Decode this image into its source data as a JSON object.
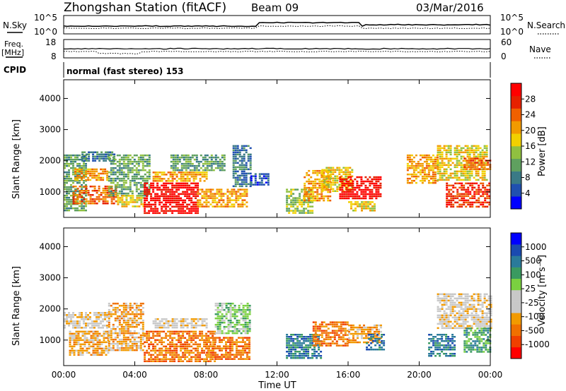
{
  "header": {
    "title": "Zhongshan Station (fitACF)",
    "beam": "Beam 09",
    "date": "03/Mar/2016"
  },
  "top_panel": {
    "left_label": "N.Sky",
    "right_label": "N.Search",
    "y_top": "10^5",
    "y_bottom": "10^0"
  },
  "freq_panel": {
    "left_label_1": "Freq.",
    "left_label_2": "[MHz]",
    "left_top": "18",
    "left_bottom": "8",
    "right_label": "Nave",
    "right_top": "60",
    "right_bottom": "0"
  },
  "cpid": {
    "label": "CPID",
    "value": "normal (fast stereo) 153"
  },
  "chart_data": [
    {
      "type": "heatmap",
      "title": "",
      "xlabel": "",
      "ylabel": "Slant Range [km]",
      "x_ticks": [
        "00:00",
        "04:00",
        "08:00",
        "12:00",
        "16:00",
        "20:00",
        "00:00"
      ],
      "y_ticks": [
        1000,
        2000,
        3000,
        4000
      ],
      "ylim": [
        180,
        4600
      ],
      "xlim_hours": [
        0,
        24
      ],
      "colorbar": {
        "label": "Power [dB]",
        "ticks": [
          "4",
          "8",
          "12",
          "16",
          "20",
          "24",
          "28"
        ],
        "colors": [
          "#0000ff",
          "#2050b0",
          "#3a7a86",
          "#5fa05f",
          "#90c040",
          "#f2d000",
          "#f29a00",
          "#f06000",
          "#e62000",
          "#ff0000"
        ]
      },
      "regions": [
        {
          "x0": 0.0,
          "x1": 1.2,
          "y0": 400,
          "y1": 2200,
          "level": 3
        },
        {
          "x0": 0.6,
          "x1": 2.4,
          "y0": 1400,
          "y1": 1750,
          "level": 6
        },
        {
          "x0": 0.5,
          "x1": 3.0,
          "y0": 600,
          "y1": 1200,
          "level": 7
        },
        {
          "x0": 1.0,
          "x1": 2.8,
          "y0": 2000,
          "y1": 2300,
          "level": 2
        },
        {
          "x0": 2.5,
          "x1": 4.8,
          "y0": 900,
          "y1": 2200,
          "level": 3
        },
        {
          "x0": 3.0,
          "x1": 4.5,
          "y0": 500,
          "y1": 900,
          "level": 5
        },
        {
          "x0": 4.5,
          "x1": 7.5,
          "y0": 300,
          "y1": 1300,
          "level": 9
        },
        {
          "x0": 5.0,
          "x1": 8.0,
          "y0": 1350,
          "y1": 1650,
          "level": 6
        },
        {
          "x0": 6.0,
          "x1": 9.0,
          "y0": 1700,
          "y1": 2200,
          "level": 3
        },
        {
          "x0": 7.5,
          "x1": 10.3,
          "y0": 500,
          "y1": 1100,
          "level": 6
        },
        {
          "x0": 9.5,
          "x1": 10.5,
          "y0": 1200,
          "y1": 2500,
          "level": 2
        },
        {
          "x0": 10.5,
          "x1": 11.5,
          "y0": 1200,
          "y1": 1600,
          "level": 1
        },
        {
          "x0": 12.5,
          "x1": 14.0,
          "y0": 350,
          "y1": 1100,
          "level": 4
        },
        {
          "x0": 13.5,
          "x1": 15.0,
          "y0": 700,
          "y1": 1700,
          "level": 6
        },
        {
          "x0": 14.5,
          "x1": 16.2,
          "y0": 1000,
          "y1": 1800,
          "level": 5
        },
        {
          "x0": 15.5,
          "x1": 17.8,
          "y0": 800,
          "y1": 1500,
          "level": 9
        },
        {
          "x0": 16.0,
          "x1": 17.5,
          "y0": 400,
          "y1": 700,
          "level": 5
        },
        {
          "x0": 19.3,
          "x1": 21.0,
          "y0": 1300,
          "y1": 2200,
          "level": 6
        },
        {
          "x0": 21.0,
          "x1": 23.8,
          "y0": 1400,
          "y1": 2500,
          "level": 5
        },
        {
          "x0": 21.5,
          "x1": 24.0,
          "y0": 500,
          "y1": 1300,
          "level": 8
        },
        {
          "x0": 22.5,
          "x1": 24.0,
          "y0": 1700,
          "y1": 2100,
          "level": 7
        }
      ]
    },
    {
      "type": "heatmap",
      "title": "",
      "xlabel": "Time UT",
      "ylabel": "Slant Range [km]",
      "x_ticks": [
        "00:00",
        "04:00",
        "08:00",
        "12:00",
        "16:00",
        "20:00",
        "00:00"
      ],
      "y_ticks": [
        1000,
        2000,
        3000,
        4000
      ],
      "ylim": [
        180,
        4600
      ],
      "xlim_hours": [
        0,
        24
      ],
      "colorbar": {
        "label": "Velocity [m s⁻¹]",
        "ticks": [
          "-1000",
          "-500",
          "-100",
          "-25",
          "25",
          "100",
          "500",
          "1000"
        ],
        "colors": [
          "#ff0000",
          "#f04000",
          "#f07000",
          "#f29a00",
          "#c8c8c8",
          "#c8c8c8",
          "#7ad040",
          "#3a9a60",
          "#2a7a9a",
          "#1a4ab0",
          "#0000ff"
        ]
      },
      "regions": [
        {
          "x0": 0.0,
          "x1": 2.5,
          "y0": 1400,
          "y1": 1900,
          "level": 4
        },
        {
          "x0": 0.3,
          "x1": 2.5,
          "y0": 500,
          "y1": 1300,
          "level": 3
        },
        {
          "x0": 2.5,
          "x1": 4.5,
          "y0": 700,
          "y1": 2200,
          "level": 3
        },
        {
          "x0": 4.5,
          "x1": 8.5,
          "y0": 300,
          "y1": 1300,
          "level": 2
        },
        {
          "x0": 5.0,
          "x1": 8.0,
          "y0": 1400,
          "y1": 1700,
          "level": 4
        },
        {
          "x0": 8.0,
          "x1": 10.5,
          "y0": 400,
          "y1": 1100,
          "level": 2
        },
        {
          "x0": 8.5,
          "x1": 10.5,
          "y0": 1200,
          "y1": 2200,
          "level": 6
        },
        {
          "x0": 12.5,
          "x1": 14.5,
          "y0": 400,
          "y1": 1200,
          "level": 8
        },
        {
          "x0": 14.0,
          "x1": 16.0,
          "y0": 800,
          "y1": 1600,
          "level": 2
        },
        {
          "x0": 16.0,
          "x1": 17.8,
          "y0": 900,
          "y1": 1500,
          "level": 3
        },
        {
          "x0": 17.0,
          "x1": 18.0,
          "y0": 700,
          "y1": 1200,
          "level": 8
        },
        {
          "x0": 20.5,
          "x1": 22.0,
          "y0": 500,
          "y1": 1200,
          "level": 8
        },
        {
          "x0": 21.0,
          "x1": 24.0,
          "y0": 1400,
          "y1": 2500,
          "level": 4
        },
        {
          "x0": 22.5,
          "x1": 24.0,
          "y0": 600,
          "y1": 1400,
          "level": 7
        }
      ]
    }
  ]
}
